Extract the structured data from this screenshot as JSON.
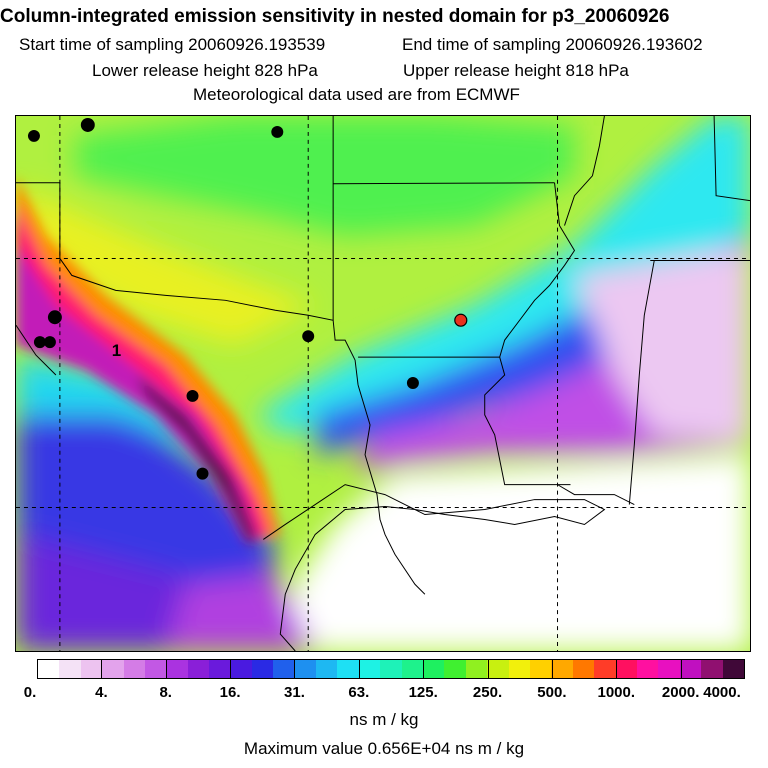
{
  "header": {
    "title": "Column-integrated emission sensitivity in nested domain for p3_20060926",
    "start_label": "Start time of sampling 20060926.193539",
    "end_label": "End time of sampling 20060926.193602",
    "lower_label": "Lower release height  828 hPa",
    "upper_label": "Upper release height  818 hPa",
    "met_label": "Meteorological data used are from ECMWF"
  },
  "map": {
    "number_label": "1",
    "colors": {
      "land_outline": "#000000",
      "grid": "#000000",
      "marker": "#000000",
      "highlight_marker": "#e8321e"
    }
  },
  "colorbar": {
    "colors": [
      "#ffffff",
      "#f4e2f6",
      "#edc3f0",
      "#e3a3ec",
      "#d47ce6",
      "#c258e4",
      "#aa33e0",
      "#8a1fd8",
      "#6a1adc",
      "#4a1ae0",
      "#2a2ae4",
      "#2060ec",
      "#1e90f0",
      "#1eb8f2",
      "#1ee0f4",
      "#1ef2e4",
      "#1ef2b8",
      "#1ef28c",
      "#1ef060",
      "#40f030",
      "#90f020",
      "#c8f010",
      "#f2f00c",
      "#ffd000",
      "#ffa800",
      "#ff7800",
      "#ff3c28",
      "#ff1060",
      "#ff10a0",
      "#e810c0",
      "#c010c0",
      "#901070",
      "#400838"
    ],
    "ticks": [
      "0.",
      "4.",
      "8.",
      "16.",
      "31.",
      "63.",
      "125.",
      "250.",
      "500.",
      "1000.",
      "2000.",
      "4000."
    ],
    "units": "ns m / kg",
    "max_value": "Maximum value  0.656E+04 ns m / kg"
  }
}
